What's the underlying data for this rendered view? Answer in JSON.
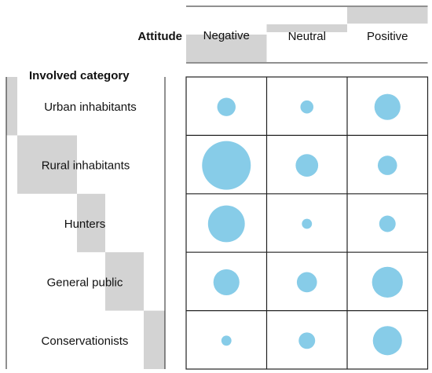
{
  "chart_data": {
    "type": "bubble_matrix",
    "attitude_label": "Attitude",
    "category_label": "Involved category",
    "columns": [
      "Negative",
      "Neutral",
      "Positive"
    ],
    "column_bar_values": [
      1.0,
      0.28,
      0.6
    ],
    "rows": [
      "Urban inhabitants",
      "Rural inhabitants",
      "Hunters",
      "General public",
      "Conservationists"
    ],
    "row_bar_values": [
      0.2,
      1.0,
      0.46,
      0.62,
      0.34
    ],
    "values": [
      [
        2,
        1,
        4
      ],
      [
        14,
        3,
        2.2
      ],
      [
        8,
        0.6,
        1.6
      ],
      [
        4,
        2.4,
        5.6
      ],
      [
        0.6,
        1.6,
        5
      ]
    ],
    "bubble_color": "#87cce8",
    "bar_color": "#d3d3d3"
  }
}
